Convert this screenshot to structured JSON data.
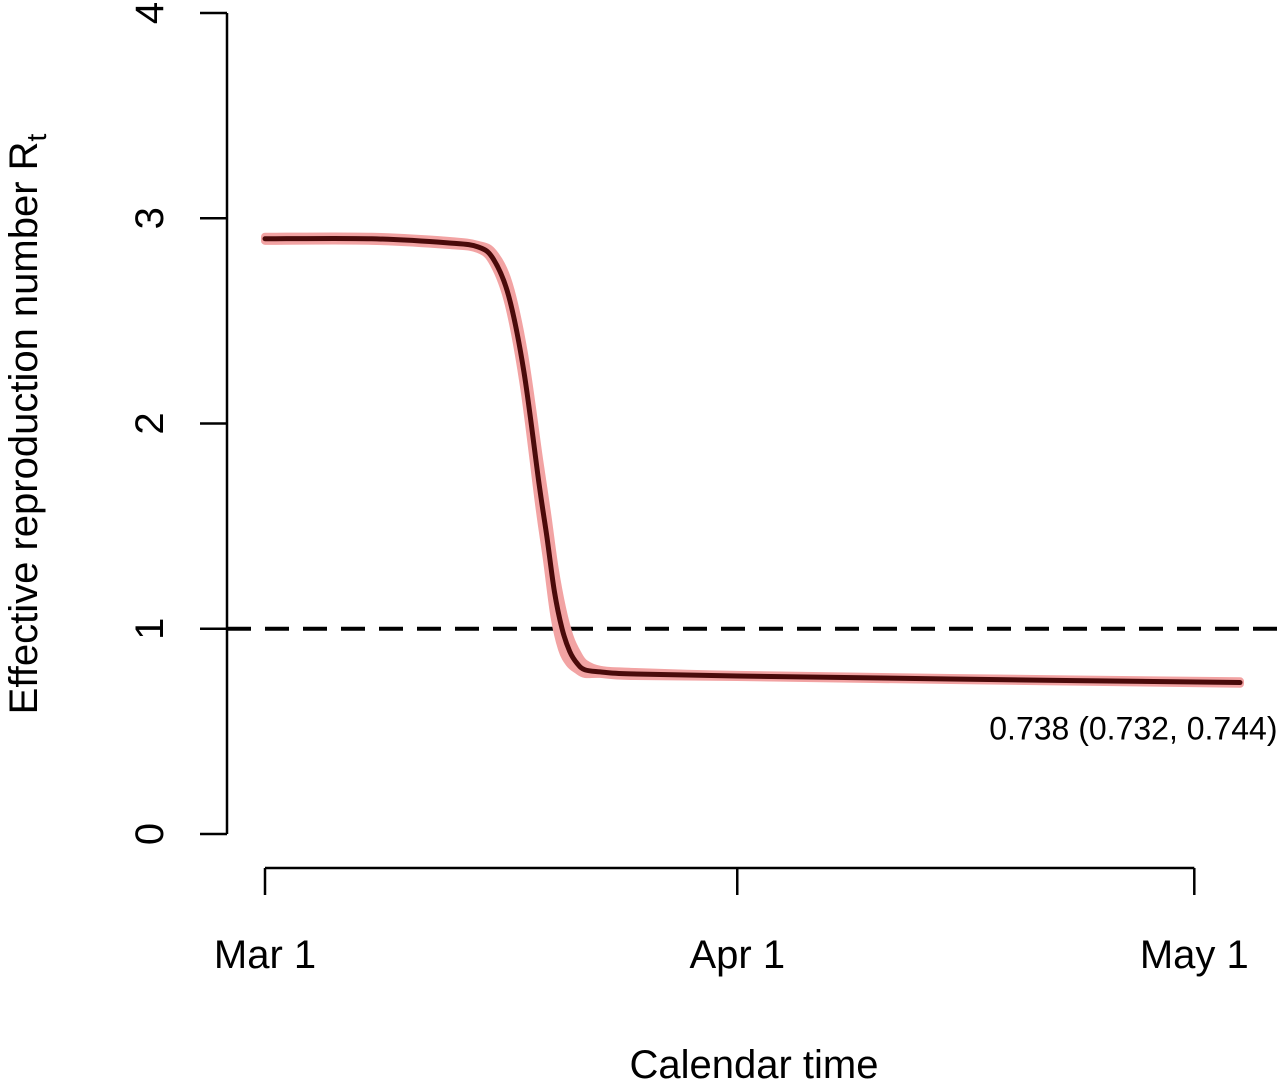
{
  "chart_data": {
    "type": "line",
    "title": "",
    "xlabel": "Calendar time",
    "ylabel": "Effective reproduction number R",
    "ylabel_subscript": "t",
    "xlim": [
      "2020-03-01",
      "2020-05-04"
    ],
    "ylim": [
      0,
      4
    ],
    "x_ticks": [
      {
        "date": "2020-03-01",
        "label": "Mar 1"
      },
      {
        "date": "2020-04-01",
        "label": "Apr 1"
      },
      {
        "date": "2020-05-01",
        "label": "May 1"
      }
    ],
    "y_ticks": [
      {
        "value": 0,
        "label": "0"
      },
      {
        "value": 1,
        "label": "1"
      },
      {
        "value": 2,
        "label": "2"
      },
      {
        "value": 3,
        "label": "3"
      },
      {
        "value": 4,
        "label": "4"
      }
    ],
    "grid": false,
    "reference_line": {
      "y": 1,
      "style": "dashed"
    },
    "series": [
      {
        "color": "#4a0a0a",
        "band_color": "#f2a3a3",
        "x": [
          "2020-03-01",
          "2020-03-08",
          "2020-03-13",
          "2020-03-15",
          "2020-03-16",
          "2020-03-17",
          "2020-03-18",
          "2020-03-19",
          "2020-03-19T12:00",
          "2020-03-20",
          "2020-03-20T12:00",
          "2020-03-21",
          "2020-03-21T12:00",
          "2020-03-22",
          "2020-03-23",
          "2020-03-25",
          "2020-04-01",
          "2020-04-15",
          "2020-05-04"
        ],
        "values": [
          2.9,
          2.9,
          2.88,
          2.86,
          2.8,
          2.62,
          2.25,
          1.7,
          1.45,
          1.18,
          1.0,
          0.89,
          0.83,
          0.8,
          0.79,
          0.78,
          0.77,
          0.755,
          0.738
        ],
        "lower": [
          2.89,
          2.89,
          2.87,
          2.85,
          2.78,
          2.58,
          2.18,
          1.6,
          1.34,
          1.06,
          0.9,
          0.83,
          0.8,
          0.78,
          0.78,
          0.77,
          0.765,
          0.75,
          0.732
        ],
        "upper": [
          2.91,
          2.91,
          2.89,
          2.87,
          2.83,
          2.68,
          2.34,
          1.82,
          1.57,
          1.3,
          1.1,
          0.96,
          0.88,
          0.83,
          0.8,
          0.79,
          0.775,
          0.76,
          0.744
        ]
      }
    ],
    "annotations": [
      {
        "text": "0.738 (0.732, 0.744)",
        "x": "2020-04-27",
        "y": 0.52
      }
    ]
  }
}
